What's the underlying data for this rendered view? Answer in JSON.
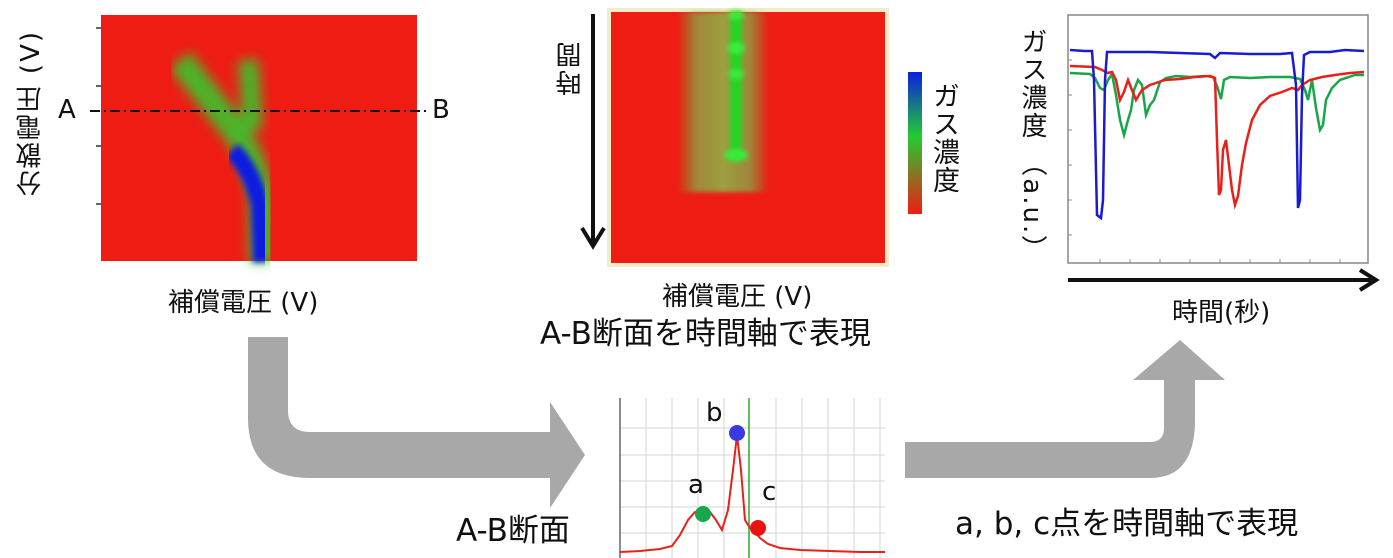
{
  "panel1": {
    "y_label": "分散電圧 (V)",
    "x_label": "補償電圧 (V)",
    "line_start": "A",
    "line_end": "B",
    "colors": {
      "background": "#ef1c14",
      "mid": "#33dd33",
      "peak": "#0a1ee0"
    }
  },
  "panel2": {
    "time_label": "時間",
    "x_label": "補償電圧 (V)",
    "caption": "A-B断面を時間軸で表現",
    "colorbar_label": "ガス濃度",
    "colorbar_colors": [
      "#0a1ee0",
      "#22cc33",
      "#ef1c14"
    ]
  },
  "panel3": {
    "y_label": "ガス濃度 （a.u.）",
    "x_label": "時間(秒)"
  },
  "cross_section": {
    "label": "A-B断面",
    "points": [
      {
        "name": "a",
        "color": "#16a84a"
      },
      {
        "name": "b",
        "color": "#3a3ae0"
      },
      {
        "name": "c",
        "color": "#ee1111"
      }
    ]
  },
  "bottom_caption": "a, b, c点を時間軸で表現",
  "colors": {
    "arrow": "#a8a8a8",
    "series_blue": "#1a1ad0",
    "series_green": "#19a64a",
    "series_red": "#e8201a"
  }
}
